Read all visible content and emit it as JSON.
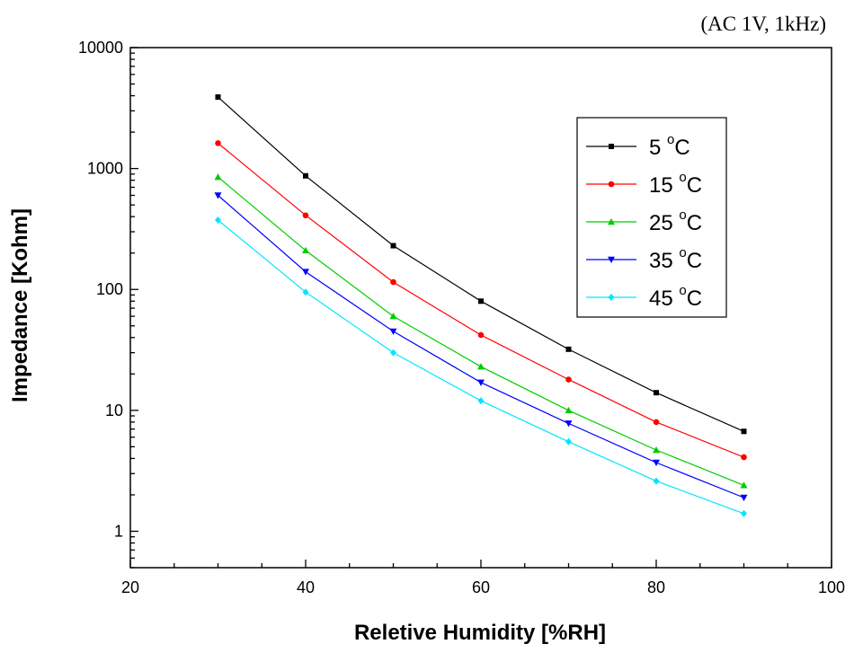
{
  "chart_data": {
    "type": "line",
    "annotation": "(AC 1V, 1kHz)",
    "xlabel": "Reletive Humidity [%RH]",
    "ylabel": "Impedance [Kohm]",
    "xlim": [
      20,
      100
    ],
    "ylim": [
      0.5,
      10000
    ],
    "yscale": "log",
    "xticks": [
      20,
      40,
      60,
      80,
      100
    ],
    "yticks": [
      1,
      10,
      100,
      1000,
      10000
    ],
    "grid": false,
    "legend_position": "top-right",
    "x": [
      30,
      40,
      50,
      60,
      70,
      80,
      90
    ],
    "series": [
      {
        "name": "5",
        "unit_sup": "o",
        "unit": "C",
        "color": "#000000",
        "marker": "square",
        "values": [
          3900,
          870,
          230,
          80,
          32,
          14,
          6.7
        ]
      },
      {
        "name": "15",
        "unit_sup": "o",
        "unit": "C",
        "color": "#ff0000",
        "marker": "circle",
        "values": [
          1620,
          410,
          115,
          42,
          18,
          8,
          4.1
        ]
      },
      {
        "name": "25",
        "unit_sup": "o",
        "unit": "C",
        "color": "#00cc00",
        "marker": "triangle-up",
        "values": [
          850,
          210,
          60,
          23,
          10,
          4.7,
          2.4
        ]
      },
      {
        "name": "35",
        "unit_sup": "o",
        "unit": "C",
        "color": "#0000ff",
        "marker": "triangle-down",
        "values": [
          600,
          140,
          45,
          17,
          7.8,
          3.7,
          1.9
        ]
      },
      {
        "name": "45",
        "unit_sup": "o",
        "unit": "C",
        "color": "#00e5ff",
        "marker": "diamond",
        "values": [
          375,
          95,
          30,
          12,
          5.5,
          2.6,
          1.4
        ]
      }
    ]
  }
}
